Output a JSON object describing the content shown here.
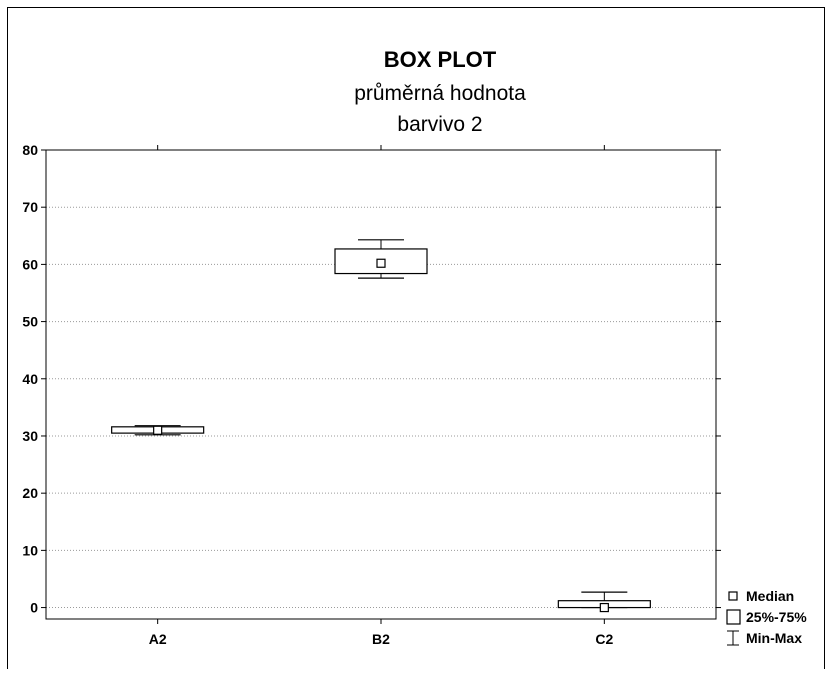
{
  "chart_data": {
    "type": "box",
    "title": "BOX PLOT",
    "subtitle": [
      "průměrná hodnota",
      "barvivo 2"
    ],
    "xlabel": "",
    "ylabel": "",
    "ylim": [
      -2,
      80
    ],
    "yticks": [
      0,
      10,
      20,
      30,
      40,
      50,
      60,
      70,
      80
    ],
    "grid": true,
    "legend_position": "bottom-right",
    "categories": [
      "A2",
      "B2",
      "C2"
    ],
    "boxes": [
      {
        "category": "A2",
        "min": 30.2,
        "q1": 30.5,
        "median": 31.0,
        "q3": 31.6,
        "max": 31.8
      },
      {
        "category": "B2",
        "min": 57.6,
        "q1": 58.4,
        "median": 60.2,
        "q3": 62.7,
        "max": 64.3
      },
      {
        "category": "C2",
        "min": 0.0,
        "q1": 0.0,
        "median": 0.0,
        "q3": 1.2,
        "max": 2.7
      }
    ],
    "legend": [
      {
        "symbol": "median",
        "label": "Median"
      },
      {
        "symbol": "box",
        "label": "25%-75%"
      },
      {
        "symbol": "whisker",
        "label": "Min-Max"
      }
    ]
  }
}
